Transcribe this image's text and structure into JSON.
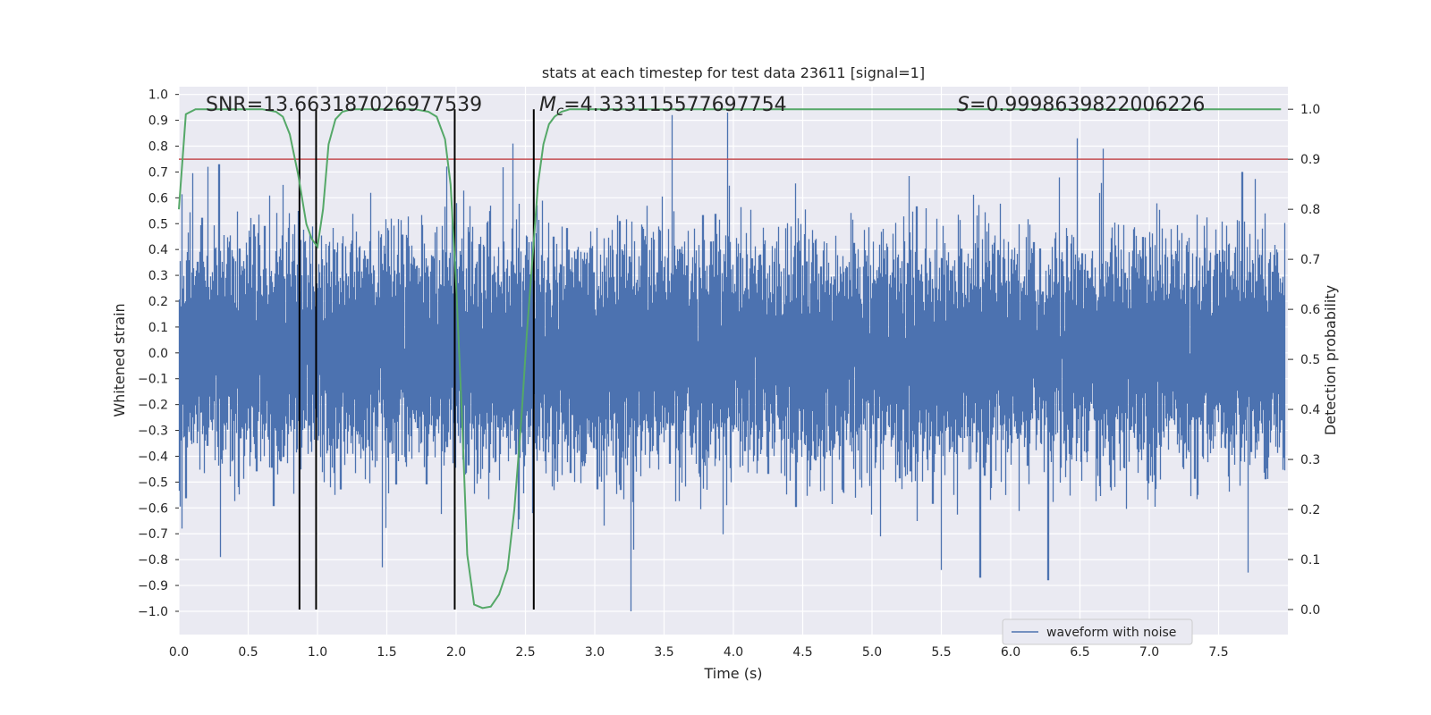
{
  "chart_data": {
    "type": "line",
    "title": "stats at each timestep for test data 23611 [signal=1]",
    "xlabel": "Time (s)",
    "ylabel": "Whitened strain",
    "y2label": "Detection probability",
    "xlim": [
      0.0,
      8.0
    ],
    "ylim": [
      -1.09,
      1.03
    ],
    "y2lim": [
      -0.05,
      1.045
    ],
    "grid": true,
    "x_ticks": [
      0.0,
      0.5,
      1.0,
      1.5,
      2.0,
      2.5,
      3.0,
      3.5,
      4.0,
      4.5,
      5.0,
      5.5,
      6.0,
      6.5,
      7.0,
      7.5
    ],
    "x_tick_labels": [
      "0.0",
      "0.5",
      "1.0",
      "1.5",
      "2.0",
      "2.5",
      "3.0",
      "3.5",
      "4.0",
      "4.5",
      "5.0",
      "5.5",
      "6.0",
      "6.5",
      "7.0",
      "7.5"
    ],
    "y_ticks": [
      1.0,
      0.9,
      0.8,
      0.7,
      0.6,
      0.5,
      0.4,
      0.3,
      0.2,
      0.1,
      0.0,
      -0.1,
      -0.2,
      -0.3,
      -0.4,
      -0.5,
      -0.6,
      -0.7,
      -0.8,
      -0.9,
      -1.0
    ],
    "y_tick_labels": [
      "1.0",
      "0.9",
      "0.8",
      "0.7",
      "0.6",
      "0.5",
      "0.4",
      "0.3",
      "0.2",
      "0.1",
      "0.0",
      "−0.1",
      "−0.2",
      "−0.3",
      "−0.4",
      "−0.5",
      "−0.6",
      "−0.7",
      "−0.8",
      "−0.9",
      "−1.0"
    ],
    "y2_ticks": [
      1.0,
      0.9,
      0.8,
      0.7,
      0.6,
      0.5,
      0.4,
      0.3,
      0.2,
      0.1,
      0.0
    ],
    "y2_tick_labels": [
      "1.0",
      "0.9",
      "0.8",
      "0.7",
      "0.6",
      "0.5",
      "0.4",
      "0.3",
      "0.2",
      "0.1",
      "0.0"
    ],
    "series": [
      {
        "name": "waveform with noise",
        "color": "#4c72b0",
        "axis": "left",
        "sample_rate": 2048,
        "duration": 7.98,
        "noise_sigma": 0.2,
        "notable_peaks": [
          {
            "x": 0.02,
            "y": -0.68
          },
          {
            "x": 0.21,
            "y": 0.72
          },
          {
            "x": 0.3,
            "y": -0.79
          },
          {
            "x": 0.29,
            "y": 0.73
          },
          {
            "x": 0.75,
            "y": 0.65
          },
          {
            "x": 1.47,
            "y": -0.83
          },
          {
            "x": 2.41,
            "y": 0.81
          },
          {
            "x": 2.55,
            "y": -0.62
          },
          {
            "x": 3.26,
            "y": -1.0
          },
          {
            "x": 3.56,
            "y": 0.92
          },
          {
            "x": 3.96,
            "y": 0.93
          },
          {
            "x": 5.5,
            "y": -0.84
          },
          {
            "x": 5.78,
            "y": -0.87
          },
          {
            "x": 6.27,
            "y": -0.88
          },
          {
            "x": 6.48,
            "y": 0.83
          },
          {
            "x": 6.67,
            "y": 0.79
          },
          {
            "x": 7.71,
            "y": -0.85
          },
          {
            "x": 7.67,
            "y": 0.7
          }
        ]
      },
      {
        "name": "detection probability",
        "color": "#55a868",
        "axis": "right",
        "x": [
          0.0,
          0.05,
          0.12,
          0.2,
          0.3,
          0.4,
          0.5,
          0.6,
          0.7,
          0.75,
          0.8,
          0.86,
          0.92,
          0.96,
          1.0,
          1.04,
          1.08,
          1.13,
          1.18,
          1.25,
          1.35,
          1.5,
          1.6,
          1.7,
          1.8,
          1.86,
          1.92,
          1.96,
          2.0,
          2.04,
          2.08,
          2.13,
          2.19,
          2.25,
          2.31,
          2.37,
          2.42,
          2.47,
          2.51,
          2.55,
          2.59,
          2.63,
          2.67,
          2.71,
          2.76,
          2.82,
          2.9,
          3.0,
          3.5,
          4.0,
          4.5,
          5.0,
          5.5,
          6.0,
          6.5,
          7.0,
          7.5,
          7.95
        ],
        "y": [
          0.8,
          0.99,
          1.0,
          1.0,
          1.0,
          1.0,
          1.0,
          1.0,
          0.995,
          0.985,
          0.95,
          0.87,
          0.77,
          0.74,
          0.725,
          0.8,
          0.93,
          0.98,
          0.995,
          1.0,
          1.0,
          1.0,
          1.0,
          1.0,
          0.995,
          0.985,
          0.94,
          0.85,
          0.65,
          0.4,
          0.11,
          0.01,
          0.003,
          0.006,
          0.03,
          0.08,
          0.2,
          0.38,
          0.55,
          0.7,
          0.85,
          0.93,
          0.97,
          0.985,
          0.995,
          1.0,
          1.0,
          1.0,
          1.0,
          1.0,
          1.0,
          1.0,
          1.0,
          1.0,
          1.0,
          1.0,
          1.0,
          1.0
        ]
      }
    ],
    "threshold": {
      "axis": "right",
      "value": 0.9,
      "color": "#c44e52"
    },
    "vertical_lines": [
      {
        "x": 0.87,
        "color": "#000000"
      },
      {
        "x": 0.99,
        "color": "#000000"
      },
      {
        "x": 1.99,
        "color": "#000000"
      },
      {
        "x": 2.56,
        "color": "#000000"
      }
    ],
    "vertical_lines_right_axis_range": [
      0.0,
      1.0
    ],
    "annotations": [
      {
        "name": "snr-annotation",
        "text": "SNR=13.663187026977539"
      },
      {
        "name": "chirp-mass-annotation",
        "text": "=4.333115577697754",
        "symbol": "M",
        "subscript": "c"
      },
      {
        "name": "score-annotation",
        "text": "=0.9998639822006226",
        "symbol": "S"
      }
    ],
    "legend": {
      "location": "lower-right",
      "entries": [
        "waveform with noise"
      ]
    }
  }
}
